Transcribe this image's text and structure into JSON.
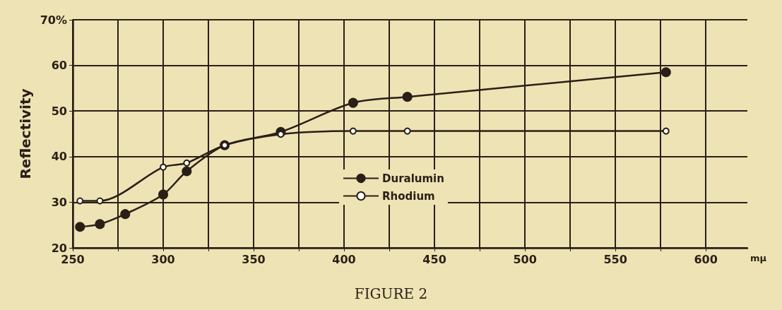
{
  "chart_data": {
    "type": "line",
    "title": "FIGURE 2",
    "xlabel": "mμ",
    "ylabel": "Reflectivity",
    "xlim": [
      250,
      623
    ],
    "ylim": [
      20,
      70
    ],
    "xticks": [
      250,
      {
        "value": 275,
        "label": null
      },
      300,
      {
        "value": 325,
        "label": null
      },
      350,
      {
        "value": 375,
        "label": null
      },
      400,
      {
        "value": 425,
        "label": null
      },
      450,
      {
        "value": 475,
        "label": null
      },
      500,
      {
        "value": 525,
        "label": null
      },
      550,
      {
        "value": 575,
        "label": null
      },
      600
    ],
    "yticks": [
      20,
      30,
      40,
      50,
      60,
      {
        "value": 70,
        "label": "70%"
      }
    ],
    "grid": true,
    "legend": "bottom",
    "marker": "circle",
    "line_style": "solid",
    "series": [
      {
        "name": "Duralumin",
        "color": "#2a1f16",
        "x": [
          254,
          265,
          279,
          300,
          313,
          334,
          365,
          405,
          435,
          578
        ],
        "values": [
          24.6,
          25.2,
          27.4,
          31.7,
          36.8,
          42.5,
          45.4,
          51.8,
          53.1,
          58.5
        ]
      },
      {
        "name": "Rhodium",
        "color": "#2a1f16",
        "x": [
          254,
          265,
          300,
          313,
          334,
          365,
          405,
          435,
          578
        ],
        "values": [
          30.3,
          30.3,
          37.7,
          38.6,
          42.5,
          44.9,
          45.6,
          45.6,
          45.6
        ]
      }
    ]
  }
}
